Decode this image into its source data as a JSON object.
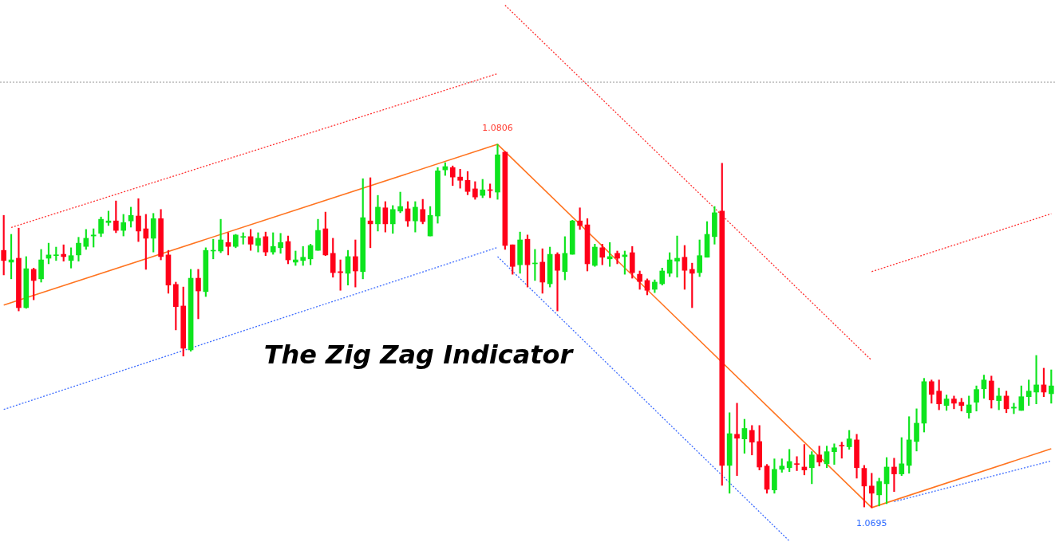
{
  "chart_data": {
    "type": "candlestick",
    "title": "The Zig Zag Indicator",
    "tick_labels": false,
    "ylim": [
      1.06845,
      1.08501
    ],
    "categories": [
      null,
      null,
      null,
      null,
      null,
      null,
      null,
      null,
      null,
      null,
      null,
      null,
      null,
      null,
      null,
      null,
      null,
      null,
      null,
      null,
      null,
      null,
      null,
      null,
      null,
      null,
      null,
      null,
      null,
      null,
      null,
      null,
      null,
      null,
      null,
      null,
      null,
      null,
      null,
      null,
      null,
      null,
      null,
      null,
      null,
      null,
      null,
      null,
      null,
      null,
      null,
      null,
      null,
      null,
      null,
      null,
      null,
      null,
      null,
      null,
      null,
      null,
      null,
      null,
      null,
      null,
      null,
      null,
      null,
      null,
      null,
      null,
      null,
      null,
      null,
      null,
      null,
      null,
      null,
      null,
      null,
      null,
      null,
      null,
      null,
      null,
      null,
      null,
      null,
      null,
      null,
      null,
      null,
      null,
      null,
      null,
      null,
      null,
      null,
      null,
      null,
      null,
      null,
      null,
      null,
      null,
      null,
      null,
      null,
      null,
      null,
      null,
      null,
      null,
      null,
      null,
      null,
      null,
      null,
      null,
      null,
      null,
      null,
      null,
      null,
      null,
      null,
      null,
      null,
      null,
      null,
      null,
      null,
      null,
      null,
      null,
      null,
      null,
      null,
      null,
      null
    ],
    "ohlc": [
      [
        1.07736,
        1.07843,
        1.07661,
        1.07705
      ],
      [
        1.077,
        1.07785,
        1.07649,
        1.07707
      ],
      [
        1.07712,
        1.07804,
        1.07551,
        1.07561
      ],
      [
        1.07561,
        1.07717,
        1.07559,
        1.0768
      ],
      [
        1.07678,
        1.07682,
        1.07585,
        1.07644
      ],
      [
        1.07649,
        1.07739,
        1.07639,
        1.07707
      ],
      [
        1.07712,
        1.07758,
        1.07695,
        1.07722
      ],
      [
        1.0772,
        1.07746,
        1.07705,
        1.07722
      ],
      [
        1.07724,
        1.07753,
        1.07703,
        1.07717
      ],
      [
        1.07705,
        1.07744,
        1.07682,
        1.0772
      ],
      [
        1.07722,
        1.07776,
        1.07703,
        1.07758
      ],
      [
        1.07748,
        1.078,
        1.07739,
        1.07773
      ],
      [
        1.0778,
        1.07802,
        1.07746,
        1.07783
      ],
      [
        1.07788,
        1.07838,
        1.07778,
        1.07831
      ],
      [
        1.07821,
        1.07856,
        1.07812,
        1.07826
      ],
      [
        1.07826,
        1.07887,
        1.0779,
        1.07797
      ],
      [
        1.07797,
        1.07846,
        1.0778,
        1.07821
      ],
      [
        1.07826,
        1.07868,
        1.07807,
        1.07843
      ],
      [
        1.07841,
        1.07894,
        1.07763,
        1.07795
      ],
      [
        1.07802,
        1.07846,
        1.07678,
        1.07773
      ],
      [
        1.07773,
        1.07849,
        1.07731,
        1.07833
      ],
      [
        1.07833,
        1.07861,
        1.07707,
        1.07717
      ],
      [
        1.07722,
        1.07736,
        1.07605,
        1.0763
      ],
      [
        1.07632,
        1.07639,
        1.07493,
        1.07564
      ],
      [
        1.07566,
        1.07624,
        1.07413,
        1.07437
      ],
      [
        1.07432,
        1.07678,
        1.07428,
        1.07651
      ],
      [
        1.07651,
        1.07678,
        1.07527,
        1.07612
      ],
      [
        1.0761,
        1.07744,
        1.07595,
        1.07736
      ],
      [
        1.07734,
        1.0777,
        1.0771,
        1.07736
      ],
      [
        1.07734,
        1.07831,
        1.07729,
        1.07768
      ],
      [
        1.0776,
        1.0779,
        1.07722,
        1.07748
      ],
      [
        1.07748,
        1.07785,
        1.07744,
        1.07783
      ],
      [
        1.07776,
        1.0779,
        1.07755,
        1.07778
      ],
      [
        1.07778,
        1.078,
        1.07736,
        1.07755
      ],
      [
        1.07751,
        1.0779,
        1.07731,
        1.07773
      ],
      [
        1.07778,
        1.07792,
        1.0772,
        1.07731
      ],
      [
        1.07731,
        1.0779,
        1.07724,
        1.07748
      ],
      [
        1.07744,
        1.07788,
        1.07727,
        1.0776
      ],
      [
        1.07763,
        1.0778,
        1.07695,
        1.07707
      ],
      [
        1.077,
        1.07734,
        1.0769,
        1.07707
      ],
      [
        1.07705,
        1.07748,
        1.0769,
        1.07715
      ],
      [
        1.0771,
        1.07755,
        1.07692,
        1.07751
      ],
      [
        1.07736,
        1.07831,
        1.07736,
        1.07797
      ],
      [
        1.07802,
        1.07853,
        1.0772,
        1.07722
      ],
      [
        1.07727,
        1.07773,
        1.07654,
        1.07668
      ],
      [
        1.07671,
        1.07707,
        1.07614,
        1.07668
      ],
      [
        1.07666,
        1.07736,
        1.0763,
        1.07717
      ],
      [
        1.07717,
        1.07768,
        1.07624,
        1.07673
      ],
      [
        1.07671,
        1.07955,
        1.07649,
        1.07836
      ],
      [
        1.07826,
        1.07958,
        1.07744,
        1.07817
      ],
      [
        1.07817,
        1.07904,
        1.07795,
        1.07868
      ],
      [
        1.07866,
        1.07885,
        1.07792,
        1.07817
      ],
      [
        1.07817,
        1.07873,
        1.07788,
        1.07861
      ],
      [
        1.07856,
        1.07914,
        1.07851,
        1.0787
      ],
      [
        1.07863,
        1.07885,
        1.07809,
        1.07826
      ],
      [
        1.07826,
        1.07885,
        1.07792,
        1.07868
      ],
      [
        1.07861,
        1.07892,
        1.07817,
        1.07824
      ],
      [
        1.0778,
        1.0787,
        1.0778,
        1.07843
      ],
      [
        1.07841,
        1.07989,
        1.07819,
        1.07979
      ],
      [
        1.07982,
        1.08004,
        1.07965,
        1.07992
      ],
      [
        1.07989,
        1.07994,
        1.07934,
        1.0796
      ],
      [
        1.0796,
        1.07984,
        1.07926,
        1.0795
      ],
      [
        1.0795,
        1.07977,
        1.07906,
        1.07916
      ],
      [
        1.07924,
        1.07946,
        1.07892,
        1.07899
      ],
      [
        1.07904,
        1.07953,
        1.07897,
        1.07921
      ],
      [
        1.07921,
        1.07939,
        1.07897,
        1.07919
      ],
      [
        1.07914,
        1.0806,
        1.07892,
        1.08028
      ],
      [
        1.08036,
        1.08038,
        1.07739,
        1.07751
      ],
      [
        1.07753,
        1.07753,
        1.07663,
        1.07687
      ],
      [
        1.07692,
        1.07792,
        1.07666,
        1.07768
      ],
      [
        1.0777,
        1.07783,
        1.07624,
        1.07692
      ],
      [
        1.07695,
        1.07739,
        1.07644,
        1.07697
      ],
      [
        1.077,
        1.07741,
        1.07605,
        1.07639
      ],
      [
        1.07634,
        1.07746,
        1.07624,
        1.07724
      ],
      [
        1.07724,
        1.07729,
        1.07551,
        1.07675
      ],
      [
        1.07671,
        1.07778,
        1.07646,
        1.07727
      ],
      [
        1.07724,
        1.07828,
        1.07724,
        1.07826
      ],
      [
        1.07826,
        1.07866,
        1.078,
        1.07812
      ],
      [
        1.07814,
        1.07833,
        1.07673,
        1.07695
      ],
      [
        1.0769,
        1.07755,
        1.07687,
        1.07746
      ],
      [
        1.07744,
        1.07755,
        1.07692,
        1.07715
      ],
      [
        1.0771,
        1.0776,
        1.07687,
        1.07717
      ],
      [
        1.07727,
        1.07734,
        1.07695,
        1.07712
      ],
      [
        1.07717,
        1.07734,
        1.07663,
        1.07722
      ],
      [
        1.07729,
        1.07748,
        1.07651,
        1.07668
      ],
      [
        1.07663,
        1.07673,
        1.07617,
        1.07641
      ],
      [
        1.07644,
        1.07649,
        1.076,
        1.07614
      ],
      [
        1.07617,
        1.07646,
        1.07607,
        1.07639
      ],
      [
        1.07634,
        1.07682,
        1.0763,
        1.07673
      ],
      [
        1.07666,
        1.07729,
        1.07656,
        1.07707
      ],
      [
        1.07703,
        1.0778,
        1.07654,
        1.07712
      ],
      [
        1.07715,
        1.07751,
        1.07617,
        1.07675
      ],
      [
        1.07678,
        1.07697,
        1.07561,
        1.07666
      ],
      [
        1.07668,
        1.07768,
        1.07656,
        1.0772
      ],
      [
        1.07715,
        1.07824,
        1.07715,
        1.07785
      ],
      [
        1.07778,
        1.0787,
        1.07755,
        1.07851
      ],
      [
        1.07856,
        1.08002,
        1.07018,
        1.07079
      ],
      [
        1.07079,
        1.0724,
        1.06994,
        1.07176
      ],
      [
        1.07174,
        1.07269,
        1.07048,
        1.07162
      ],
      [
        1.0716,
        1.0722,
        1.07116,
        1.07192
      ],
      [
        1.07186,
        1.07201,
        1.07111,
        1.0715
      ],
      [
        1.07152,
        1.07201,
        1.07065,
        1.07074
      ],
      [
        1.07077,
        1.07082,
        1.06994,
        1.07006
      ],
      [
        1.07004,
        1.07099,
        1.06994,
        1.07067
      ],
      [
        1.07067,
        1.07099,
        1.07058,
        1.07077
      ],
      [
        1.07072,
        1.07128,
        1.0706,
        1.07091
      ],
      [
        1.07084,
        1.07106,
        1.07063,
        1.07082
      ],
      [
        1.07074,
        1.07143,
        1.0705,
        1.07065
      ],
      [
        1.07072,
        1.07121,
        1.07023,
        1.07111
      ],
      [
        1.07111,
        1.07138,
        1.07077,
        1.07089
      ],
      [
        1.07084,
        1.07138,
        1.07072,
        1.07121
      ],
      [
        1.07121,
        1.07145,
        1.07082,
        1.07133
      ],
      [
        1.0714,
        1.0715,
        1.07101,
        1.07138
      ],
      [
        1.07136,
        1.07186,
        1.07128,
        1.0716
      ],
      [
        1.07157,
        1.07174,
        1.0704,
        1.07072
      ],
      [
        1.0707,
        1.07079,
        1.06952,
        1.07016
      ],
      [
        1.07016,
        1.07055,
        1.0695,
        1.06994
      ],
      [
        1.06989,
        1.0704,
        1.06955,
        1.0703
      ],
      [
        1.07023,
        1.07103,
        1.06962,
        1.07074
      ],
      [
        1.07074,
        1.07101,
        1.06999,
        1.07053
      ],
      [
        1.07053,
        1.07164,
        1.07048,
        1.07084
      ],
      [
        1.07079,
        1.07228,
        1.07055,
        1.07157
      ],
      [
        1.07152,
        1.07252,
        1.07123,
        1.07208
      ],
      [
        1.07208,
        1.07345,
        1.07181,
        1.07335
      ],
      [
        1.07335,
        1.0734,
        1.07269,
        1.07296
      ],
      [
        1.07306,
        1.0734,
        1.07249,
        1.07267
      ],
      [
        1.07262,
        1.07294,
        1.07247,
        1.07282
      ],
      [
        1.07282,
        1.07291,
        1.07252,
        1.07269
      ],
      [
        1.07272,
        1.07284,
        1.07245,
        1.07262
      ],
      [
        1.0724,
        1.07291,
        1.07223,
        1.07264
      ],
      [
        1.07272,
        1.07322,
        1.07245,
        1.07311
      ],
      [
        1.07313,
        1.07355,
        1.07284,
        1.0734
      ],
      [
        1.07337,
        1.07352,
        1.07254,
        1.07279
      ],
      [
        1.07277,
        1.07315,
        1.07249,
        1.07291
      ],
      [
        1.07291,
        1.07306,
        1.0724,
        1.07252
      ],
      [
        1.07254,
        1.07269,
        1.07237,
        1.07257
      ],
      [
        1.07247,
        1.07322,
        1.07247,
        1.07289
      ],
      [
        1.07289,
        1.0734,
        1.07262,
        1.07306
      ],
      [
        1.07303,
        1.07415,
        1.07267,
        1.07325
      ],
      [
        1.07325,
        1.07376,
        1.07289,
        1.07303
      ],
      [
        1.07298,
        1.07371,
        1.07269,
        1.07322
      ]
    ],
    "colors": [
      "#ff0019",
      "#0ee41e",
      "#ff0019",
      "#0ee41e",
      "#ff0019",
      "#0ee41e",
      "#0ee41e",
      "#0ee41e",
      "#ff0019",
      "#0ee41e",
      "#0ee41e",
      "#0ee41e",
      "#0ee41e",
      "#0ee41e",
      "#0ee41e",
      "#ff0019",
      "#0ee41e",
      "#0ee41e",
      "#ff0019",
      "#ff0019",
      "#0ee41e",
      "#ff0019",
      "#ff0019",
      "#ff0019",
      "#ff0019",
      "#0ee41e",
      "#ff0019",
      "#0ee41e",
      "#0ee41e",
      "#0ee41e",
      "#ff0019",
      "#0ee41e",
      "#0ee41e",
      "#ff0019",
      "#0ee41e",
      "#ff0019",
      "#0ee41e",
      "#0ee41e",
      "#ff0019",
      "#0ee41e",
      "#0ee41e",
      "#0ee41e",
      "#0ee41e",
      "#ff0019",
      "#ff0019",
      "#ff0019",
      "#0ee41e",
      "#ff0019",
      "#0ee41e",
      "#ff0019",
      "#0ee41e",
      "#ff0019",
      "#0ee41e",
      "#0ee41e",
      "#ff0019",
      "#0ee41e",
      "#ff0019",
      "#0ee41e",
      "#0ee41e",
      "#0ee41e",
      "#ff0019",
      "#ff0019",
      "#ff0019",
      "#ff0019",
      "#0ee41e",
      "#ff0019",
      "#0ee41e",
      "#ff0019",
      "#ff0019",
      "#0ee41e",
      "#ff0019",
      "#0ee41e",
      "#ff0019",
      "#0ee41e",
      "#ff0019",
      "#0ee41e",
      "#0ee41e",
      "#ff0019",
      "#ff0019",
      "#0ee41e",
      "#ff0019",
      "#0ee41e",
      "#ff0019",
      "#0ee41e",
      "#ff0019",
      "#ff0019",
      "#ff0019",
      "#0ee41e",
      "#0ee41e",
      "#0ee41e",
      "#0ee41e",
      "#ff0019",
      "#ff0019",
      "#0ee41e",
      "#0ee41e",
      "#0ee41e",
      "#ff0019",
      "#0ee41e",
      "#ff0019",
      "#0ee41e",
      "#ff0019",
      "#ff0019",
      "#ff0019",
      "#0ee41e",
      "#0ee41e",
      "#0ee41e",
      "#ff0019",
      "#ff0019",
      "#0ee41e",
      "#ff0019",
      "#0ee41e",
      "#0ee41e",
      "#ff0019",
      "#0ee41e",
      "#ff0019",
      "#ff0019",
      "#ff0019",
      "#0ee41e",
      "#0ee41e",
      "#ff0019",
      "#0ee41e",
      "#0ee41e",
      "#0ee41e",
      "#0ee41e",
      "#ff0019",
      "#ff0019",
      "#0ee41e",
      "#ff0019",
      "#ff0019",
      "#0ee41e",
      "#0ee41e",
      "#0ee41e",
      "#ff0019",
      "#0ee41e",
      "#ff0019",
      "#0ee41e",
      "#0ee41e",
      "#0ee41e",
      "#0ee41e",
      "#ff0019",
      "#0ee41e"
    ],
    "series": [
      {
        "type": "line",
        "color": "#ff7420",
        "line_style": "solid",
        "values": [
          1.07569,
          null,
          null,
          null,
          null,
          null,
          null,
          null,
          null,
          null,
          null,
          null,
          null,
          null,
          null,
          null,
          null,
          null,
          null,
          null,
          null,
          null,
          null,
          null,
          null,
          null,
          null,
          null,
          null,
          null,
          null,
          null,
          null,
          null,
          null,
          null,
          null,
          null,
          null,
          null,
          null,
          null,
          null,
          null,
          null,
          null,
          null,
          null,
          null,
          null,
          null,
          null,
          null,
          null,
          null,
          null,
          null,
          null,
          null,
          null,
          null,
          null,
          null,
          null,
          null,
          null,
          1.0806,
          null,
          null,
          null,
          null,
          null,
          null,
          null,
          null,
          null,
          null,
          null,
          null,
          null,
          null,
          null,
          null,
          null,
          null,
          null,
          null,
          null,
          null,
          null,
          null,
          null,
          null,
          null,
          null,
          null,
          null,
          null,
          null,
          null,
          null,
          null,
          null,
          null,
          null,
          null,
          null,
          null,
          null,
          null,
          null,
          null,
          null,
          null,
          null,
          null,
          1.0695,
          null,
          null,
          null,
          null,
          null,
          null,
          null,
          null,
          null,
          null,
          null,
          null,
          null,
          null,
          null,
          null,
          null,
          null,
          null,
          null,
          null,
          null,
          null,
          1.0713
        ]
      },
      {
        "type": "line",
        "color": "#ff3030",
        "line_style": "dotted",
        "values": [
          null,
          1.07806,
          null,
          null,
          null,
          null,
          null,
          null,
          null,
          null,
          null,
          null,
          null,
          null,
          null,
          null,
          null,
          null,
          null,
          null,
          null,
          null,
          null,
          null,
          null,
          null,
          null,
          null,
          null,
          null,
          null,
          null,
          null,
          null,
          null,
          null,
          null,
          null,
          null,
          null,
          null,
          null,
          null,
          null,
          null,
          null,
          null,
          null,
          null,
          null,
          null,
          null,
          null,
          null,
          null,
          null,
          null,
          null,
          null,
          null,
          null,
          null,
          null,
          null,
          null,
          null,
          1.08276,
          null,
          null,
          null,
          null,
          null,
          null,
          null,
          null,
          null,
          null,
          null,
          null,
          null,
          null,
          null,
          null,
          null,
          null,
          null,
          null,
          null,
          null,
          null,
          null,
          null,
          null,
          null,
          null,
          null,
          null,
          null,
          null,
          null,
          null,
          null,
          null,
          null,
          null,
          null,
          null,
          null,
          null,
          null,
          null,
          null,
          null,
          null,
          null,
          null,
          null,
          null,
          null,
          null,
          null,
          null,
          null,
          null,
          null,
          null,
          null,
          null,
          null,
          null,
          null,
          null,
          null,
          null,
          null,
          null,
          null,
          null,
          null,
          null,
          null
        ]
      },
      {
        "type": "line",
        "color": "#3d6cff",
        "line_style": "dotted",
        "values": [
          1.0725,
          null,
          null,
          null,
          null,
          null,
          null,
          null,
          null,
          null,
          null,
          null,
          null,
          null,
          null,
          null,
          null,
          null,
          null,
          null,
          null,
          null,
          null,
          null,
          null,
          null,
          null,
          null,
          null,
          null,
          null,
          null,
          null,
          null,
          null,
          null,
          null,
          null,
          null,
          null,
          null,
          null,
          null,
          null,
          null,
          null,
          null,
          null,
          null,
          null,
          null,
          null,
          null,
          null,
          null,
          null,
          null,
          null,
          null,
          null,
          null,
          null,
          null,
          null,
          null,
          null,
          1.07745,
          null,
          null,
          null,
          null,
          null,
          null,
          null,
          null,
          null,
          null,
          null,
          null,
          null,
          null,
          null,
          null,
          null,
          null,
          null,
          null,
          null,
          null,
          null,
          null,
          null,
          null,
          null,
          null,
          null,
          null,
          null,
          null,
          null,
          null,
          null,
          null,
          null,
          null,
          null,
          null,
          null,
          null,
          null,
          null,
          null,
          null,
          null,
          null,
          null,
          null,
          null,
          null,
          null,
          null,
          null,
          null,
          null,
          null,
          null,
          null,
          null,
          null,
          null,
          null,
          null,
          null,
          null,
          null,
          null,
          null,
          null,
          null,
          null,
          null
        ]
      },
      {
        "type": "line",
        "color": "#ff3030",
        "line_style": "dotted",
        "values": [
          null,
          null,
          null,
          null,
          null,
          null,
          null,
          null,
          null,
          null,
          null,
          null,
          null,
          null,
          null,
          null,
          null,
          null,
          null,
          null,
          null,
          null,
          null,
          null,
          null,
          null,
          null,
          null,
          null,
          null,
          null,
          null,
          null,
          null,
          null,
          null,
          null,
          null,
          null,
          null,
          null,
          null,
          null,
          null,
          null,
          null,
          null,
          null,
          null,
          null,
          null,
          null,
          null,
          null,
          null,
          null,
          null,
          null,
          null,
          null,
          null,
          null,
          null,
          null,
          null,
          null,
          null,
          1.08485,
          null,
          null,
          null,
          null,
          null,
          null,
          null,
          null,
          null,
          null,
          null,
          null,
          null,
          null,
          null,
          null,
          null,
          null,
          null,
          null,
          null,
          null,
          null,
          null,
          null,
          null,
          null,
          null,
          null,
          null,
          null,
          null,
          null,
          null,
          null,
          null,
          null,
          null,
          null,
          null,
          null,
          null,
          null,
          null,
          null,
          null,
          null,
          null,
          1.074,
          null,
          null,
          null,
          null,
          null,
          null,
          null,
          null,
          null,
          null,
          null,
          null,
          null,
          null,
          null,
          null,
          null,
          null,
          null,
          null,
          null,
          null,
          null,
          null
        ]
      },
      {
        "type": "line",
        "color": "#3d6cff",
        "line_style": "dotted",
        "values": [
          null,
          null,
          null,
          null,
          null,
          null,
          null,
          null,
          null,
          null,
          null,
          null,
          null,
          null,
          null,
          null,
          null,
          null,
          null,
          null,
          null,
          null,
          null,
          null,
          null,
          null,
          null,
          null,
          null,
          null,
          null,
          null,
          null,
          null,
          null,
          null,
          null,
          null,
          null,
          null,
          null,
          null,
          null,
          null,
          null,
          null,
          null,
          null,
          null,
          null,
          null,
          null,
          null,
          null,
          null,
          null,
          null,
          null,
          null,
          null,
          null,
          null,
          null,
          null,
          null,
          null,
          1.07717,
          null,
          null,
          null,
          null,
          null,
          null,
          null,
          null,
          null,
          null,
          null,
          null,
          null,
          null,
          null,
          null,
          null,
          null,
          null,
          null,
          null,
          null,
          null,
          null,
          null,
          null,
          null,
          null,
          null,
          null,
          null,
          null,
          null,
          null,
          null,
          null,
          null,
          null,
          1.06848,
          null,
          null,
          null,
          null,
          null,
          null,
          null,
          null,
          null,
          null,
          null,
          null,
          null,
          null,
          null,
          null,
          null,
          null,
          null,
          null,
          null,
          null,
          null,
          null,
          null,
          null,
          null,
          null,
          null,
          null,
          null,
          null,
          null,
          null,
          null
        ]
      },
      {
        "type": "line",
        "color": "#ff3030",
        "line_style": "dotted",
        "values": [
          null,
          null,
          null,
          null,
          null,
          null,
          null,
          null,
          null,
          null,
          null,
          null,
          null,
          null,
          null,
          null,
          null,
          null,
          null,
          null,
          null,
          null,
          null,
          null,
          null,
          null,
          null,
          null,
          null,
          null,
          null,
          null,
          null,
          null,
          null,
          null,
          null,
          null,
          null,
          null,
          null,
          null,
          null,
          null,
          null,
          null,
          null,
          null,
          null,
          null,
          null,
          null,
          null,
          null,
          null,
          null,
          null,
          null,
          null,
          null,
          null,
          null,
          null,
          null,
          null,
          null,
          null,
          null,
          null,
          null,
          null,
          null,
          null,
          null,
          null,
          null,
          null,
          null,
          null,
          null,
          null,
          null,
          null,
          null,
          null,
          null,
          null,
          null,
          null,
          null,
          null,
          null,
          null,
          null,
          null,
          null,
          null,
          null,
          null,
          null,
          null,
          null,
          null,
          null,
          null,
          null,
          null,
          null,
          null,
          null,
          null,
          null,
          null,
          null,
          null,
          null,
          1.07671,
          null,
          null,
          null,
          null,
          null,
          null,
          null,
          null,
          null,
          null,
          null,
          null,
          null,
          null,
          null,
          null,
          null,
          null,
          null,
          null,
          null,
          null,
          null,
          1.07848
        ]
      },
      {
        "type": "line",
        "color": "#3d6cff",
        "line_style": "dotted",
        "values": [
          null,
          null,
          null,
          null,
          null,
          null,
          null,
          null,
          null,
          null,
          null,
          null,
          null,
          null,
          null,
          null,
          null,
          null,
          null,
          null,
          null,
          null,
          null,
          null,
          null,
          null,
          null,
          null,
          null,
          null,
          null,
          null,
          null,
          null,
          null,
          null,
          null,
          null,
          null,
          null,
          null,
          null,
          null,
          null,
          null,
          null,
          null,
          null,
          null,
          null,
          null,
          null,
          null,
          null,
          null,
          null,
          null,
          null,
          null,
          null,
          null,
          null,
          null,
          null,
          null,
          null,
          null,
          null,
          null,
          null,
          null,
          null,
          null,
          null,
          null,
          null,
          null,
          null,
          null,
          null,
          null,
          null,
          null,
          null,
          null,
          null,
          null,
          null,
          null,
          null,
          null,
          null,
          null,
          null,
          null,
          null,
          null,
          null,
          null,
          null,
          null,
          null,
          null,
          null,
          null,
          null,
          null,
          null,
          null,
          null,
          null,
          null,
          null,
          null,
          null,
          null,
          null,
          null,
          null,
          1.06968,
          null,
          null,
          null,
          null,
          null,
          null,
          null,
          null,
          null,
          null,
          null,
          null,
          null,
          null,
          null,
          null,
          null,
          null,
          null,
          null,
          1.07093
        ]
      }
    ],
    "ref_lines": [
      {
        "axis": "y",
        "value": 1.0825,
        "color": "#9a9a9a",
        "line_style": "dotted"
      }
    ],
    "annotations": [
      {
        "text": "1.0806",
        "y": 1.0806
      },
      {
        "text": "1.0695",
        "y": 1.0695
      }
    ]
  }
}
